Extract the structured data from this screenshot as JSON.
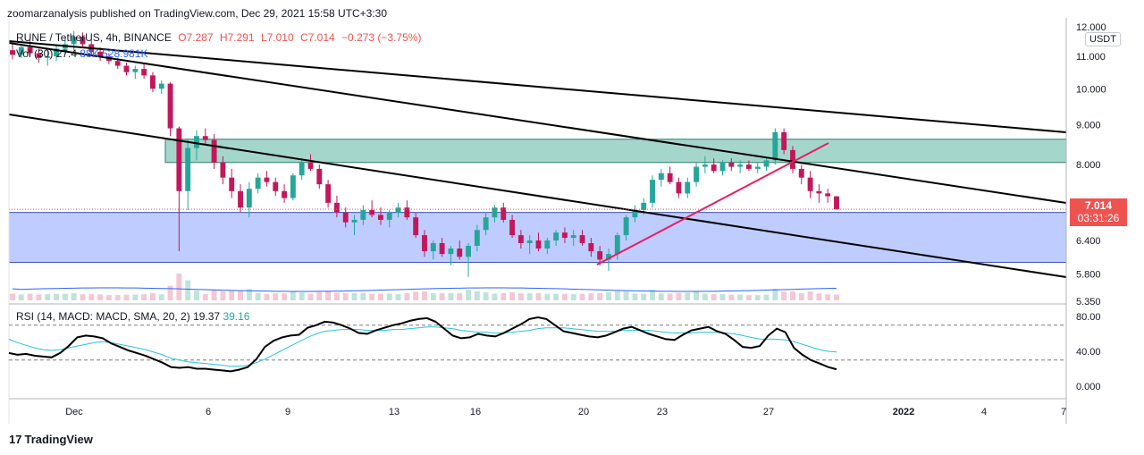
{
  "publish_line": "zoomarzanalysis published on TradingView.com, Dec 29, 2021 15:58 UTC+3:30",
  "header": {
    "symbol": "RUNE / TetherUS, 4h, BINANCE",
    "open": "O7.287",
    "high": "H7.291",
    "low": "L7.010",
    "close": "C7.014",
    "change": "−0.273 (−3.75%)"
  },
  "volume": {
    "label": "Vol (30)",
    "v1": "27.4",
    "v2": "88K",
    "v3": "528.981K"
  },
  "rsi_header": {
    "label": "RSI (14, MACD: MACD, SMA, 20, 2)",
    "v1": "19.37",
    "v2": "39.16"
  },
  "price_tag": {
    "price": "7.014",
    "countdown": "03:31:26"
  },
  "unit": "USDT",
  "brand": "TradingView",
  "colors": {
    "up": "#26a69a",
    "down": "#c2185b",
    "green_zone": "#a5d6cc",
    "blue_zone": "#bfccff",
    "pink_line": "#e91e63",
    "rsi_line": "#000000",
    "rsi_signal": "#26c6da",
    "vol_ma": "#2962ff",
    "tag": "#ef5350"
  },
  "chart_data": [
    {
      "type": "candlestick",
      "title": "RUNE / TetherUS, 4h, BINANCE",
      "x_ticks": [
        "Dec",
        "6",
        "9",
        "13",
        "16",
        "20",
        "23",
        "27",
        "2022",
        "4",
        "7"
      ],
      "y_ticks": [
        "12.000",
        "11.000",
        "10.000",
        "9.000",
        "8.000",
        "7.000",
        "6.400",
        "5.800",
        "5.350"
      ],
      "y_scale": "log",
      "ylim": [
        5.35,
        12.0
      ],
      "last_price": 7.014,
      "ohlc": [
        [
          11.2,
          11.45,
          10.9,
          11.05
        ],
        [
          11.05,
          11.4,
          10.95,
          11.3
        ],
        [
          11.3,
          11.55,
          11.0,
          11.1
        ],
        [
          11.1,
          11.25,
          10.8,
          10.95
        ],
        [
          10.95,
          11.2,
          10.7,
          11.0
        ],
        [
          11.0,
          11.35,
          10.85,
          11.25
        ],
        [
          11.25,
          11.6,
          11.05,
          11.4
        ],
        [
          11.4,
          11.85,
          11.2,
          11.65
        ],
        [
          11.65,
          11.8,
          11.3,
          11.4
        ],
        [
          11.4,
          11.55,
          11.05,
          11.15
        ],
        [
          11.15,
          11.3,
          10.85,
          11.0
        ],
        [
          11.0,
          11.1,
          10.75,
          10.85
        ],
        [
          10.85,
          10.95,
          10.6,
          10.7
        ],
        [
          10.7,
          10.8,
          10.4,
          10.5
        ],
        [
          10.5,
          10.7,
          10.3,
          10.6
        ],
        [
          10.6,
          10.75,
          10.3,
          10.4
        ],
        [
          10.4,
          10.5,
          9.9,
          10.0
        ],
        [
          10.0,
          10.25,
          9.85,
          10.15
        ],
        [
          10.15,
          10.2,
          8.7,
          8.9
        ],
        [
          8.9,
          8.95,
          6.2,
          7.4
        ],
        [
          7.4,
          8.6,
          7.0,
          8.4
        ],
        [
          8.4,
          8.85,
          8.1,
          8.7
        ],
        [
          8.7,
          8.9,
          8.5,
          8.6
        ],
        [
          8.6,
          8.75,
          7.9,
          8.05
        ],
        [
          8.05,
          8.2,
          7.55,
          7.7
        ],
        [
          7.7,
          7.9,
          7.25,
          7.4
        ],
        [
          7.4,
          7.55,
          6.95,
          7.05
        ],
        [
          7.05,
          7.6,
          6.85,
          7.45
        ],
        [
          7.45,
          7.8,
          7.35,
          7.7
        ],
        [
          7.7,
          7.85,
          7.5,
          7.6
        ],
        [
          7.6,
          7.7,
          7.3,
          7.4
        ],
        [
          7.4,
          7.55,
          7.15,
          7.25
        ],
        [
          7.25,
          7.8,
          7.2,
          7.75
        ],
        [
          7.75,
          8.15,
          7.65,
          8.05
        ],
        [
          8.05,
          8.25,
          7.85,
          7.9
        ],
        [
          7.9,
          8.0,
          7.45,
          7.55
        ],
        [
          7.55,
          7.65,
          7.05,
          7.15
        ],
        [
          7.15,
          7.3,
          6.85,
          6.95
        ],
        [
          6.95,
          7.05,
          6.65,
          6.75
        ],
        [
          6.75,
          6.9,
          6.5,
          6.8
        ],
        [
          6.8,
          7.1,
          6.7,
          7.0
        ],
        [
          7.0,
          7.2,
          6.85,
          6.9
        ],
        [
          6.9,
          7.05,
          6.7,
          6.8
        ],
        [
          6.8,
          7.0,
          6.65,
          6.95
        ],
        [
          6.95,
          7.15,
          6.85,
          7.05
        ],
        [
          7.05,
          7.2,
          6.8,
          6.85
        ],
        [
          6.85,
          6.95,
          6.45,
          6.5
        ],
        [
          6.5,
          6.6,
          6.1,
          6.2
        ],
        [
          6.2,
          6.4,
          6.05,
          6.35
        ],
        [
          6.35,
          6.45,
          6.1,
          6.15
        ],
        [
          6.15,
          6.3,
          5.95,
          6.25
        ],
        [
          6.25,
          6.4,
          6.05,
          6.1
        ],
        [
          6.1,
          6.35,
          5.75,
          6.3
        ],
        [
          6.3,
          6.7,
          6.2,
          6.6
        ],
        [
          6.6,
          6.95,
          6.5,
          6.85
        ],
        [
          6.85,
          7.1,
          6.75,
          7.05
        ],
        [
          7.05,
          7.15,
          6.75,
          6.8
        ],
        [
          6.8,
          6.9,
          6.45,
          6.5
        ],
        [
          6.5,
          6.6,
          6.25,
          6.35
        ],
        [
          6.35,
          6.5,
          6.15,
          6.4
        ],
        [
          6.4,
          6.55,
          6.2,
          6.25
        ],
        [
          6.25,
          6.45,
          6.15,
          6.4
        ],
        [
          6.4,
          6.6,
          6.3,
          6.55
        ],
        [
          6.55,
          6.65,
          6.35,
          6.45
        ],
        [
          6.45,
          6.6,
          6.3,
          6.5
        ],
        [
          6.5,
          6.6,
          6.3,
          6.35
        ],
        [
          6.35,
          6.45,
          6.1,
          6.2
        ],
        [
          6.2,
          6.3,
          5.95,
          6.05
        ],
        [
          6.05,
          6.25,
          5.85,
          6.15
        ],
        [
          6.15,
          6.55,
          6.05,
          6.5
        ],
        [
          6.5,
          6.9,
          6.4,
          6.85
        ],
        [
          6.85,
          7.1,
          6.75,
          7.0
        ],
        [
          7.0,
          7.25,
          6.9,
          7.15
        ],
        [
          7.15,
          7.75,
          7.05,
          7.65
        ],
        [
          7.65,
          7.9,
          7.5,
          7.8
        ],
        [
          7.8,
          7.95,
          7.55,
          7.6
        ],
        [
          7.6,
          7.7,
          7.25,
          7.35
        ],
        [
          7.35,
          7.7,
          7.25,
          7.6
        ],
        [
          7.6,
          8.05,
          7.5,
          7.95
        ],
        [
          7.95,
          8.2,
          7.8,
          8.0
        ],
        [
          8.0,
          8.15,
          7.8,
          7.85
        ],
        [
          7.85,
          8.1,
          7.75,
          8.05
        ],
        [
          8.05,
          8.15,
          7.85,
          7.95
        ],
        [
          7.95,
          8.1,
          7.8,
          8.0
        ],
        [
          8.0,
          8.1,
          7.85,
          7.9
        ],
        [
          7.9,
          8.05,
          7.8,
          7.95
        ],
        [
          7.95,
          8.15,
          7.85,
          8.1
        ],
        [
          8.1,
          8.9,
          8.0,
          8.8
        ],
        [
          8.8,
          8.9,
          8.25,
          8.35
        ],
        [
          8.35,
          8.45,
          7.8,
          7.9
        ],
        [
          7.9,
          8.0,
          7.55,
          7.7
        ],
        [
          7.7,
          7.85,
          7.25,
          7.4
        ],
        [
          7.4,
          7.55,
          7.15,
          7.35
        ],
        [
          7.35,
          7.45,
          7.15,
          7.29
        ],
        [
          7.287,
          7.291,
          7.01,
          7.014
        ]
      ]
    },
    {
      "type": "line",
      "title": "RSI (14, MACD: MACD, SMA, 20, 2)",
      "y_ticks": [
        "80.00",
        "40.00",
        "0.000"
      ],
      "ylim": [
        0,
        100
      ],
      "series": [
        {
          "name": "RSI",
          "values": [
            38,
            36,
            37,
            35,
            34,
            33,
            38,
            46,
            56,
            58,
            57,
            55,
            49,
            45,
            41,
            38,
            35,
            31,
            27,
            22,
            21,
            22,
            20,
            20,
            19,
            18,
            17,
            19,
            22,
            31,
            45,
            52,
            56,
            58,
            59,
            67,
            70,
            74,
            73,
            70,
            66,
            61,
            60,
            64,
            67,
            70,
            72,
            75,
            77,
            78,
            74,
            66,
            58,
            55,
            56,
            60,
            58,
            57,
            61,
            66,
            71,
            77,
            79,
            77,
            70,
            63,
            61,
            59,
            57,
            56,
            58,
            62,
            66,
            68,
            64,
            60,
            57,
            54,
            53,
            59,
            64,
            66,
            68,
            63,
            60,
            53,
            45,
            44,
            46,
            58,
            66,
            62,
            44,
            36,
            30,
            26,
            22,
            19.37
          ]
        },
        {
          "name": "Signal",
          "values": [
            54,
            50,
            47,
            44,
            42,
            41,
            42,
            44,
            46,
            48,
            50,
            51,
            50,
            48,
            46,
            44,
            42,
            39,
            36,
            32,
            30,
            28,
            27,
            26,
            25,
            24,
            23,
            23,
            24,
            27,
            31,
            36,
            41,
            46,
            51,
            56,
            60,
            63,
            64,
            65,
            65,
            65,
            64,
            64,
            64,
            65,
            65,
            66,
            67,
            68,
            68,
            67,
            66,
            64,
            63,
            62,
            62,
            61,
            61,
            62,
            63,
            64,
            66,
            67,
            67,
            67,
            66,
            65,
            64,
            63,
            63,
            63,
            64,
            64,
            64,
            64,
            63,
            62,
            61,
            61,
            61,
            62,
            62,
            62,
            61,
            60,
            58,
            56,
            54,
            54,
            54,
            53,
            51,
            48,
            45,
            42,
            40,
            39.16
          ]
        }
      ]
    }
  ]
}
